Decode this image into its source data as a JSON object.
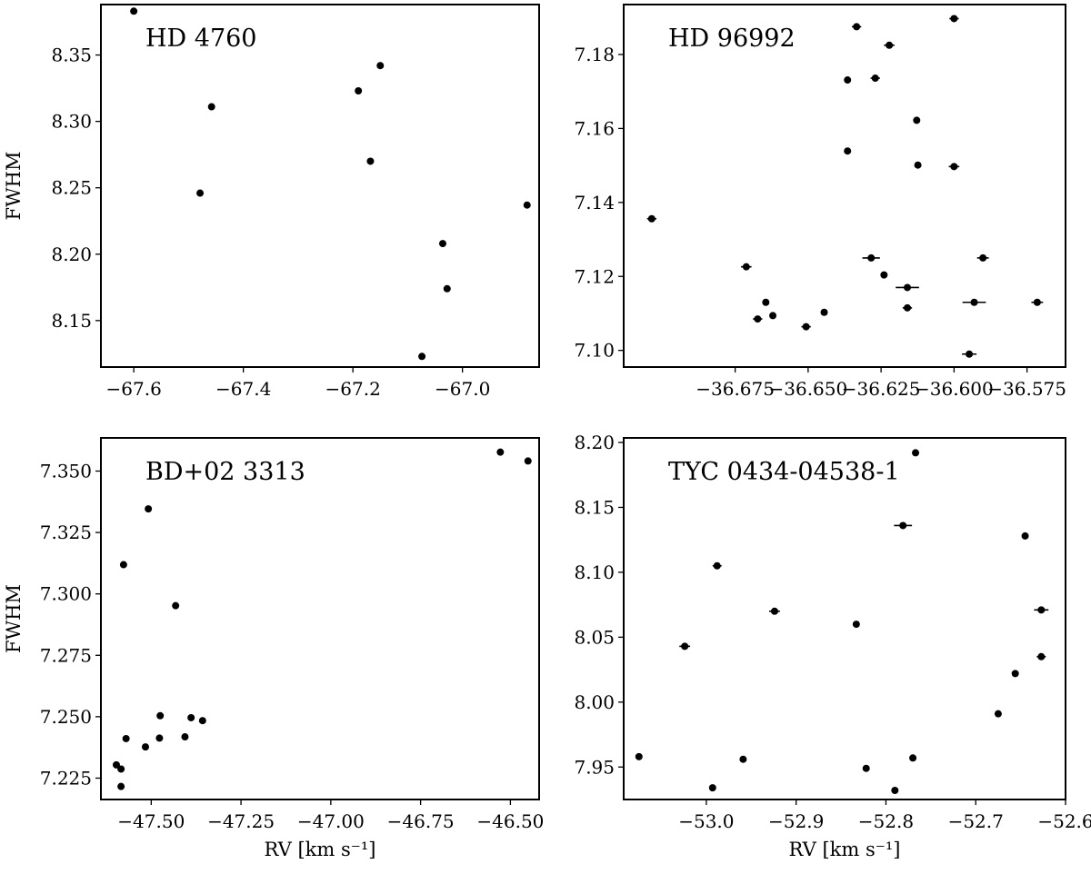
{
  "figure": {
    "background": "#ffffff",
    "marker_color": "#000000"
  },
  "chart_data": [
    {
      "type": "scatter",
      "title": "HD 4760",
      "xlabel": "",
      "ylabel": "FWHM",
      "xlim": [
        -67.66,
        -66.86
      ],
      "ylim": [
        8.115,
        8.388
      ],
      "xticks": [
        -67.6,
        -67.4,
        -67.2,
        -67.0
      ],
      "xtick_labels": [
        "−67.6",
        "−67.4",
        "−67.2",
        "−67.0"
      ],
      "yticks": [
        8.15,
        8.2,
        8.25,
        8.3,
        8.35
      ],
      "ytick_labels": [
        "8.15",
        "8.20",
        "8.25",
        "8.30",
        "8.35"
      ],
      "points": [
        {
          "x": -67.6,
          "y": 8.383
        },
        {
          "x": -67.458,
          "y": 8.311
        },
        {
          "x": -67.479,
          "y": 8.246
        },
        {
          "x": -67.15,
          "y": 8.342
        },
        {
          "x": -67.19,
          "y": 8.323
        },
        {
          "x": -67.168,
          "y": 8.27
        },
        {
          "x": -66.882,
          "y": 8.237
        },
        {
          "x": -67.036,
          "y": 8.208
        },
        {
          "x": -67.028,
          "y": 8.174
        },
        {
          "x": -67.074,
          "y": 8.123
        }
      ]
    },
    {
      "type": "scatter",
      "title": "HD 96992",
      "xlabel": "",
      "ylabel": "",
      "xlim": [
        -36.7132,
        -36.5618
      ],
      "ylim": [
        7.0955,
        7.1935
      ],
      "xticks": [
        -36.675,
        -36.65,
        -36.625,
        -36.6,
        -36.575
      ],
      "xtick_labels": [
        "−36.675",
        "−36.650",
        "−36.625",
        "−36.600",
        "−36.575"
      ],
      "yticks": [
        7.1,
        7.12,
        7.14,
        7.16,
        7.18
      ],
      "ytick_labels": [
        "7.10",
        "7.12",
        "7.14",
        "7.16",
        "7.18"
      ],
      "points": [
        {
          "x": -36.6334,
          "y": 7.1875,
          "xerr": 0.0016
        },
        {
          "x": -36.6,
          "y": 7.1897,
          "xerr": 0.0016
        },
        {
          "x": -36.6365,
          "y": 7.1731
        },
        {
          "x": -36.627,
          "y": 7.1736,
          "xerr": 0.0016
        },
        {
          "x": -36.6222,
          "y": 7.1825,
          "xerr": 0.0018
        },
        {
          "x": -36.6128,
          "y": 7.1622
        },
        {
          "x": -36.6365,
          "y": 7.1539
        },
        {
          "x": -36.6124,
          "y": 7.1501
        },
        {
          "x": -36.6,
          "y": 7.1497,
          "xerr": 0.0018
        },
        {
          "x": -36.7036,
          "y": 7.1356,
          "xerr": 0.0016
        },
        {
          "x": -36.6712,
          "y": 7.1226,
          "xerr": 0.0018
        },
        {
          "x": -36.6645,
          "y": 7.113
        },
        {
          "x": -36.6673,
          "y": 7.1085,
          "xerr": 0.0016
        },
        {
          "x": -36.6621,
          "y": 7.1094
        },
        {
          "x": -36.6507,
          "y": 7.1064,
          "xerr": 0.0016
        },
        {
          "x": -36.6445,
          "y": 7.1103
        },
        {
          "x": -36.6284,
          "y": 7.125,
          "xerr": 0.003
        },
        {
          "x": -36.624,
          "y": 7.1204
        },
        {
          "x": -36.616,
          "y": 7.117,
          "xerr": 0.004
        },
        {
          "x": -36.616,
          "y": 7.1115,
          "xerr": 0.0016
        },
        {
          "x": -36.5901,
          "y": 7.125,
          "xerr": 0.002
        },
        {
          "x": -36.5931,
          "y": 7.113,
          "xerr": 0.004
        },
        {
          "x": -36.5948,
          "y": 7.099,
          "xerr": 0.0025
        },
        {
          "x": -36.5715,
          "y": 7.113,
          "xerr": 0.002
        }
      ]
    },
    {
      "type": "scatter",
      "title": "BD+02 3313",
      "xlabel": "RV [km s⁻¹]",
      "ylabel": "FWHM",
      "xlim": [
        -47.64,
        -46.42
      ],
      "ylim": [
        7.2163,
        7.3635
      ],
      "xticks": [
        -47.5,
        -47.25,
        -47.0,
        -46.75,
        -46.5
      ],
      "xtick_labels": [
        "−47.50",
        "−47.25",
        "−47.00",
        "−46.75",
        "−46.50"
      ],
      "yticks": [
        7.225,
        7.25,
        7.275,
        7.3,
        7.325,
        7.35
      ],
      "ytick_labels": [
        "7.225",
        "7.250",
        "7.275",
        "7.300",
        "7.325",
        "7.350"
      ],
      "points": [
        {
          "x": -46.528,
          "y": 7.3577
        },
        {
          "x": -46.451,
          "y": 7.3541
        },
        {
          "x": -47.508,
          "y": 7.3346
        },
        {
          "x": -47.577,
          "y": 7.3119
        },
        {
          "x": -47.432,
          "y": 7.2952
        },
        {
          "x": -47.57,
          "y": 7.2411
        },
        {
          "x": -47.475,
          "y": 7.2504
        },
        {
          "x": -47.477,
          "y": 7.2413
        },
        {
          "x": -47.516,
          "y": 7.2377
        },
        {
          "x": -47.389,
          "y": 7.2496
        },
        {
          "x": -47.406,
          "y": 7.2418
        },
        {
          "x": -47.357,
          "y": 7.2484
        },
        {
          "x": -47.597,
          "y": 7.2304
        },
        {
          "x": -47.584,
          "y": 7.2287
        },
        {
          "x": -47.584,
          "y": 7.2216
        }
      ]
    },
    {
      "type": "scatter",
      "title": "TYC 0434-04538-1",
      "xlabel": "RV [km s⁻¹]",
      "ylabel": "",
      "xlim": [
        -53.092,
        -52.6
      ],
      "ylim": [
        7.925,
        8.2035
      ],
      "xticks": [
        -53.0,
        -52.9,
        -52.8,
        -52.7,
        -52.6
      ],
      "xtick_labels": [
        "−53.0",
        "−52.9",
        "−52.8",
        "−52.7",
        "−52.6"
      ],
      "yticks": [
        7.95,
        8.0,
        8.05,
        8.1,
        8.15,
        8.2
      ],
      "ytick_labels": [
        "7.95",
        "8.00",
        "8.05",
        "8.10",
        "8.15",
        "8.20"
      ],
      "points": [
        {
          "x": -52.767,
          "y": 8.192
        },
        {
          "x": -52.781,
          "y": 8.136,
          "xerr": 0.01
        },
        {
          "x": -52.988,
          "y": 8.105,
          "xerr": 0.005
        },
        {
          "x": -52.645,
          "y": 8.128
        },
        {
          "x": -52.924,
          "y": 8.07,
          "xerr": 0.006
        },
        {
          "x": -52.833,
          "y": 8.06
        },
        {
          "x": -52.627,
          "y": 8.071,
          "xerr": 0.008
        },
        {
          "x": -53.024,
          "y": 8.043,
          "xerr": 0.006
        },
        {
          "x": -52.627,
          "y": 8.035,
          "xerr": 0.005
        },
        {
          "x": -52.656,
          "y": 8.022
        },
        {
          "x": -52.675,
          "y": 7.991
        },
        {
          "x": -53.075,
          "y": 7.958
        },
        {
          "x": -52.959,
          "y": 7.956
        },
        {
          "x": -52.77,
          "y": 7.957
        },
        {
          "x": -52.822,
          "y": 7.949
        },
        {
          "x": -52.993,
          "y": 7.934
        },
        {
          "x": -52.79,
          "y": 7.932
        }
      ]
    }
  ]
}
